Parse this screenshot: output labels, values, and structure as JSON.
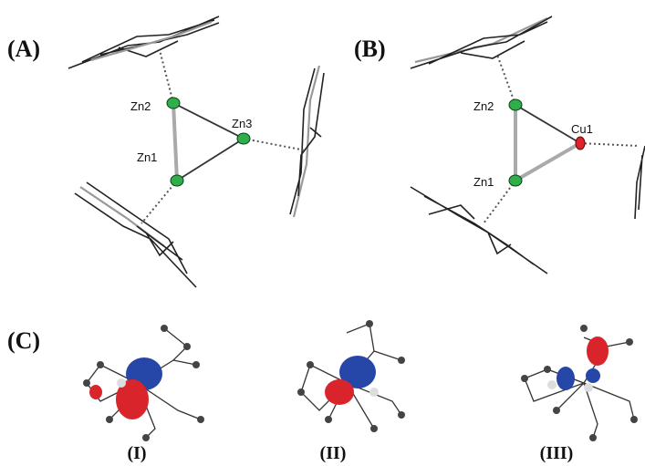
{
  "panels": [
    {
      "label": "(A)",
      "atoms": [
        "Zn2",
        "Zn3",
        "Zn1"
      ]
    },
    {
      "label": "(B)",
      "atoms": [
        "Zn2",
        "Cu1",
        "Zn1"
      ]
    },
    {
      "label": "(C)",
      "orbitals": [
        "(I)",
        "(II)",
        "(III)"
      ]
    }
  ]
}
